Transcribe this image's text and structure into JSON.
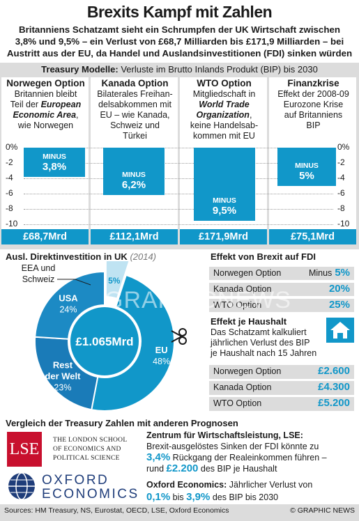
{
  "header": {
    "title": "Brexits Kampf mit Zahlen",
    "subtitle_lines": [
      "Britanniens Schatzamt sieht ein Schrumpfen der UK Wirtschaft zwischen",
      "3,8% und 9,5% – ein Verlust von £68,7 Milliarden bis £171,9 Milliarden – bei",
      "Austritt aus der EU, da Handel und Auslandsinvestitionen (FDI) sinken würden"
    ]
  },
  "treasury": {
    "heading_bold": "Treasury Modelle:",
    "heading_rest": " Verluste im Brutto Inlands Produkt (BIP) bis 2030",
    "y_ticks_left": [
      "0%",
      "-2",
      "-4",
      "-6",
      "-8",
      "-10"
    ],
    "y_ticks_right": [
      "0%",
      "-2",
      "-4",
      "-6",
      "-8",
      "-10"
    ],
    "bar_prefix": "MINUS",
    "options": [
      {
        "title": "Norwegen Option",
        "desc_parts": [
          {
            "text": "Britannien bleibt",
            "bold": false
          },
          {
            "text": "Teil der ",
            "bold": false
          },
          {
            "text": "European Economic Area",
            "bold": true
          },
          {
            "text": ", wie Norwegen",
            "bold": false
          }
        ],
        "desc_lines": [
          "Britannien bleibt",
          "Teil der |European|",
          "|Economic Area|,",
          "wie Norwegen"
        ],
        "value_label": "3,8%",
        "amount": "£68,7Mrd"
      },
      {
        "title": "Kanada Option",
        "desc_lines": [
          "Bilaterales Freihan-",
          "delsabkommen mit",
          "EU – wie Kanada,",
          "Schweiz und",
          "Türkei"
        ],
        "value_label": "6,2%",
        "amount": "£112,1Mrd"
      },
      {
        "title": "WTO Option",
        "desc_lines": [
          "Mitgliedschaft in",
          "|World Trade|",
          "|Organization|,",
          "keine Handelsab-",
          "kommen mit EU"
        ],
        "value_label": "9,5%",
        "amount": "£171,9Mrd"
      },
      {
        "title": "Finanzkrise",
        "desc_lines": [
          "Effekt der 2008-09",
          "Eurozone Krise",
          "auf Britanniens",
          "BIP"
        ],
        "value_label": "5%",
        "amount": "£75,1Mrd"
      }
    ]
  },
  "chart_data": [
    {
      "type": "bar",
      "title": "Treasury Modelle: Verluste im Brutto Inlands Produkt (BIP) bis 2030",
      "categories": [
        "Norwegen Option",
        "Kanada Option",
        "WTO Option",
        "Finanzkrise"
      ],
      "values": [
        -3.8,
        -6.2,
        -9.5,
        -5.0
      ],
      "ylim": [
        -10,
        0
      ],
      "ylabel": "",
      "xlabel": ""
    },
    {
      "type": "pie",
      "title": "Ausl. Direktinvestition in UK (2014)",
      "categories": [
        "EEA und Schweiz",
        "EU",
        "Rest der Welt",
        "USA"
      ],
      "values": [
        5,
        48,
        23,
        24
      ],
      "center_label": "£1.065Mrd"
    }
  ],
  "fdi_pie": {
    "heading": "Ausl. Direktinvestition in UK",
    "year": "(2014)",
    "center": "£1.065Mrd",
    "slices": [
      {
        "label": "EEA und",
        "label2": "Schweiz",
        "pct": "5%",
        "color": "#bfe3f2"
      },
      {
        "label": "EU",
        "pct": "48%",
        "color": "#1197c9"
      },
      {
        "label": "Rest",
        "label2": "der Welt",
        "pct": "23%",
        "color": "#1a7bb8"
      },
      {
        "label": "USA",
        "pct": "24%",
        "color": "#1c8ac4"
      }
    ]
  },
  "fdi_effect": {
    "heading": "Effekt von Brexit auf  FDI",
    "rows": [
      {
        "label": "Norwegen Option",
        "prefix": "Minus",
        "value": "5%"
      },
      {
        "label": "Kanada Option",
        "prefix": "",
        "value": "20%"
      },
      {
        "label": "WTO Option",
        "prefix": "",
        "value": "25%"
      }
    ]
  },
  "household": {
    "heading": "Effekt je Haushalt",
    "desc_lines": [
      "Das Schatzamt kalkuliert",
      "jährlichen Verlust des BIP",
      "je Haushalt nach 15 Jahren"
    ],
    "rows": [
      {
        "label": "Norwegen Option",
        "value": "£2.600"
      },
      {
        "label": "Kanada Option",
        "value": "£4.300"
      },
      {
        "label": "WTO Option",
        "value": "£5.200"
      }
    ]
  },
  "comparison": {
    "heading": "Vergleich der Treasury Zahlen mit anderen Prognosen",
    "lse_logo": "LSE",
    "lse_name_lines": [
      "THE LONDON SCHOOL",
      "OF ECONOMICS AND",
      "POLITICAL SCIENCE"
    ],
    "oxford_lines": [
      "OXFORD",
      "ECONOMICS"
    ],
    "lse_heading": "Zentrum für Wirtschaftsleistung, LSE:",
    "lse_text1": "Brexit-ausgelöstes Sinken der FDI könnte zu",
    "lse_val1": "3,4%",
    "lse_text2": " Rückgang der Realeinkommen führen –",
    "lse_text3a": "rund ",
    "lse_val2": "£2.200",
    "lse_text3b": " des BIP je Haushalt",
    "oxford_heading": "Oxford Economics:",
    "oxford_text1": " Jährlicher Verlust von",
    "oxford_val1": "0,1%",
    "oxford_mid": " bis  ",
    "oxford_val2": "3,9%",
    "oxford_text2": " des BIP bis 2030"
  },
  "footer": {
    "sources": "Sources: HM Treasury, NS, Eurostat, OECD, LSE, Oxford Economics",
    "credit": "© GRAPHIC NEWS"
  },
  "watermark": "GRAPHICNEWS",
  "colors": {
    "accent": "#1197c9",
    "panel": "#dcdcdc",
    "light": "#bfe3f2"
  }
}
